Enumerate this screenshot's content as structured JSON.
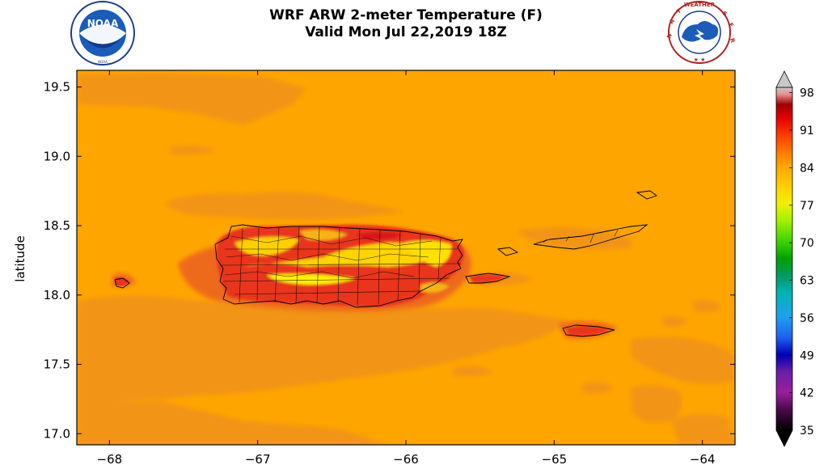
{
  "title": {
    "line1": "WRF ARW 2-meter Temperature (F)",
    "line2": "Valid Mon Jul 22,2019 18Z"
  },
  "logos": {
    "left": {
      "icon": "noaa-logo",
      "text": "NOAA",
      "ring_text": "NATIONAL OCEANIC AND ATMOSPHERIC ADMINISTRATION · U.S. DEPARTMENT OF COMMERCE"
    },
    "right": {
      "icon": "nws-logo",
      "ring_text": "NATIONAL WEATHER SERVICE"
    }
  },
  "map": {
    "ylabel": "latitude",
    "x_ticks": [
      -68,
      -67,
      -66,
      -65,
      -64
    ],
    "x_tick_labels": [
      "−68",
      "−67",
      "−66",
      "−65",
      "−64"
    ],
    "y_ticks": [
      17.0,
      17.5,
      18.0,
      18.5,
      19.0,
      19.5
    ],
    "y_tick_labels": [
      "17.0",
      "17.5",
      "18.0",
      "18.5",
      "19.0",
      "19.5"
    ],
    "x_range": [
      -68.22,
      -63.78
    ],
    "y_range": [
      16.92,
      19.62
    ],
    "background_color": "#ffa500"
  },
  "colorbar": {
    "ticks": [
      35,
      42,
      49,
      56,
      63,
      70,
      77,
      84,
      91,
      98
    ],
    "tick_labels": [
      "35",
      "42",
      "49",
      "56",
      "63",
      "70",
      "77",
      "84",
      "91",
      "98"
    ],
    "range": [
      35,
      99
    ]
  }
}
